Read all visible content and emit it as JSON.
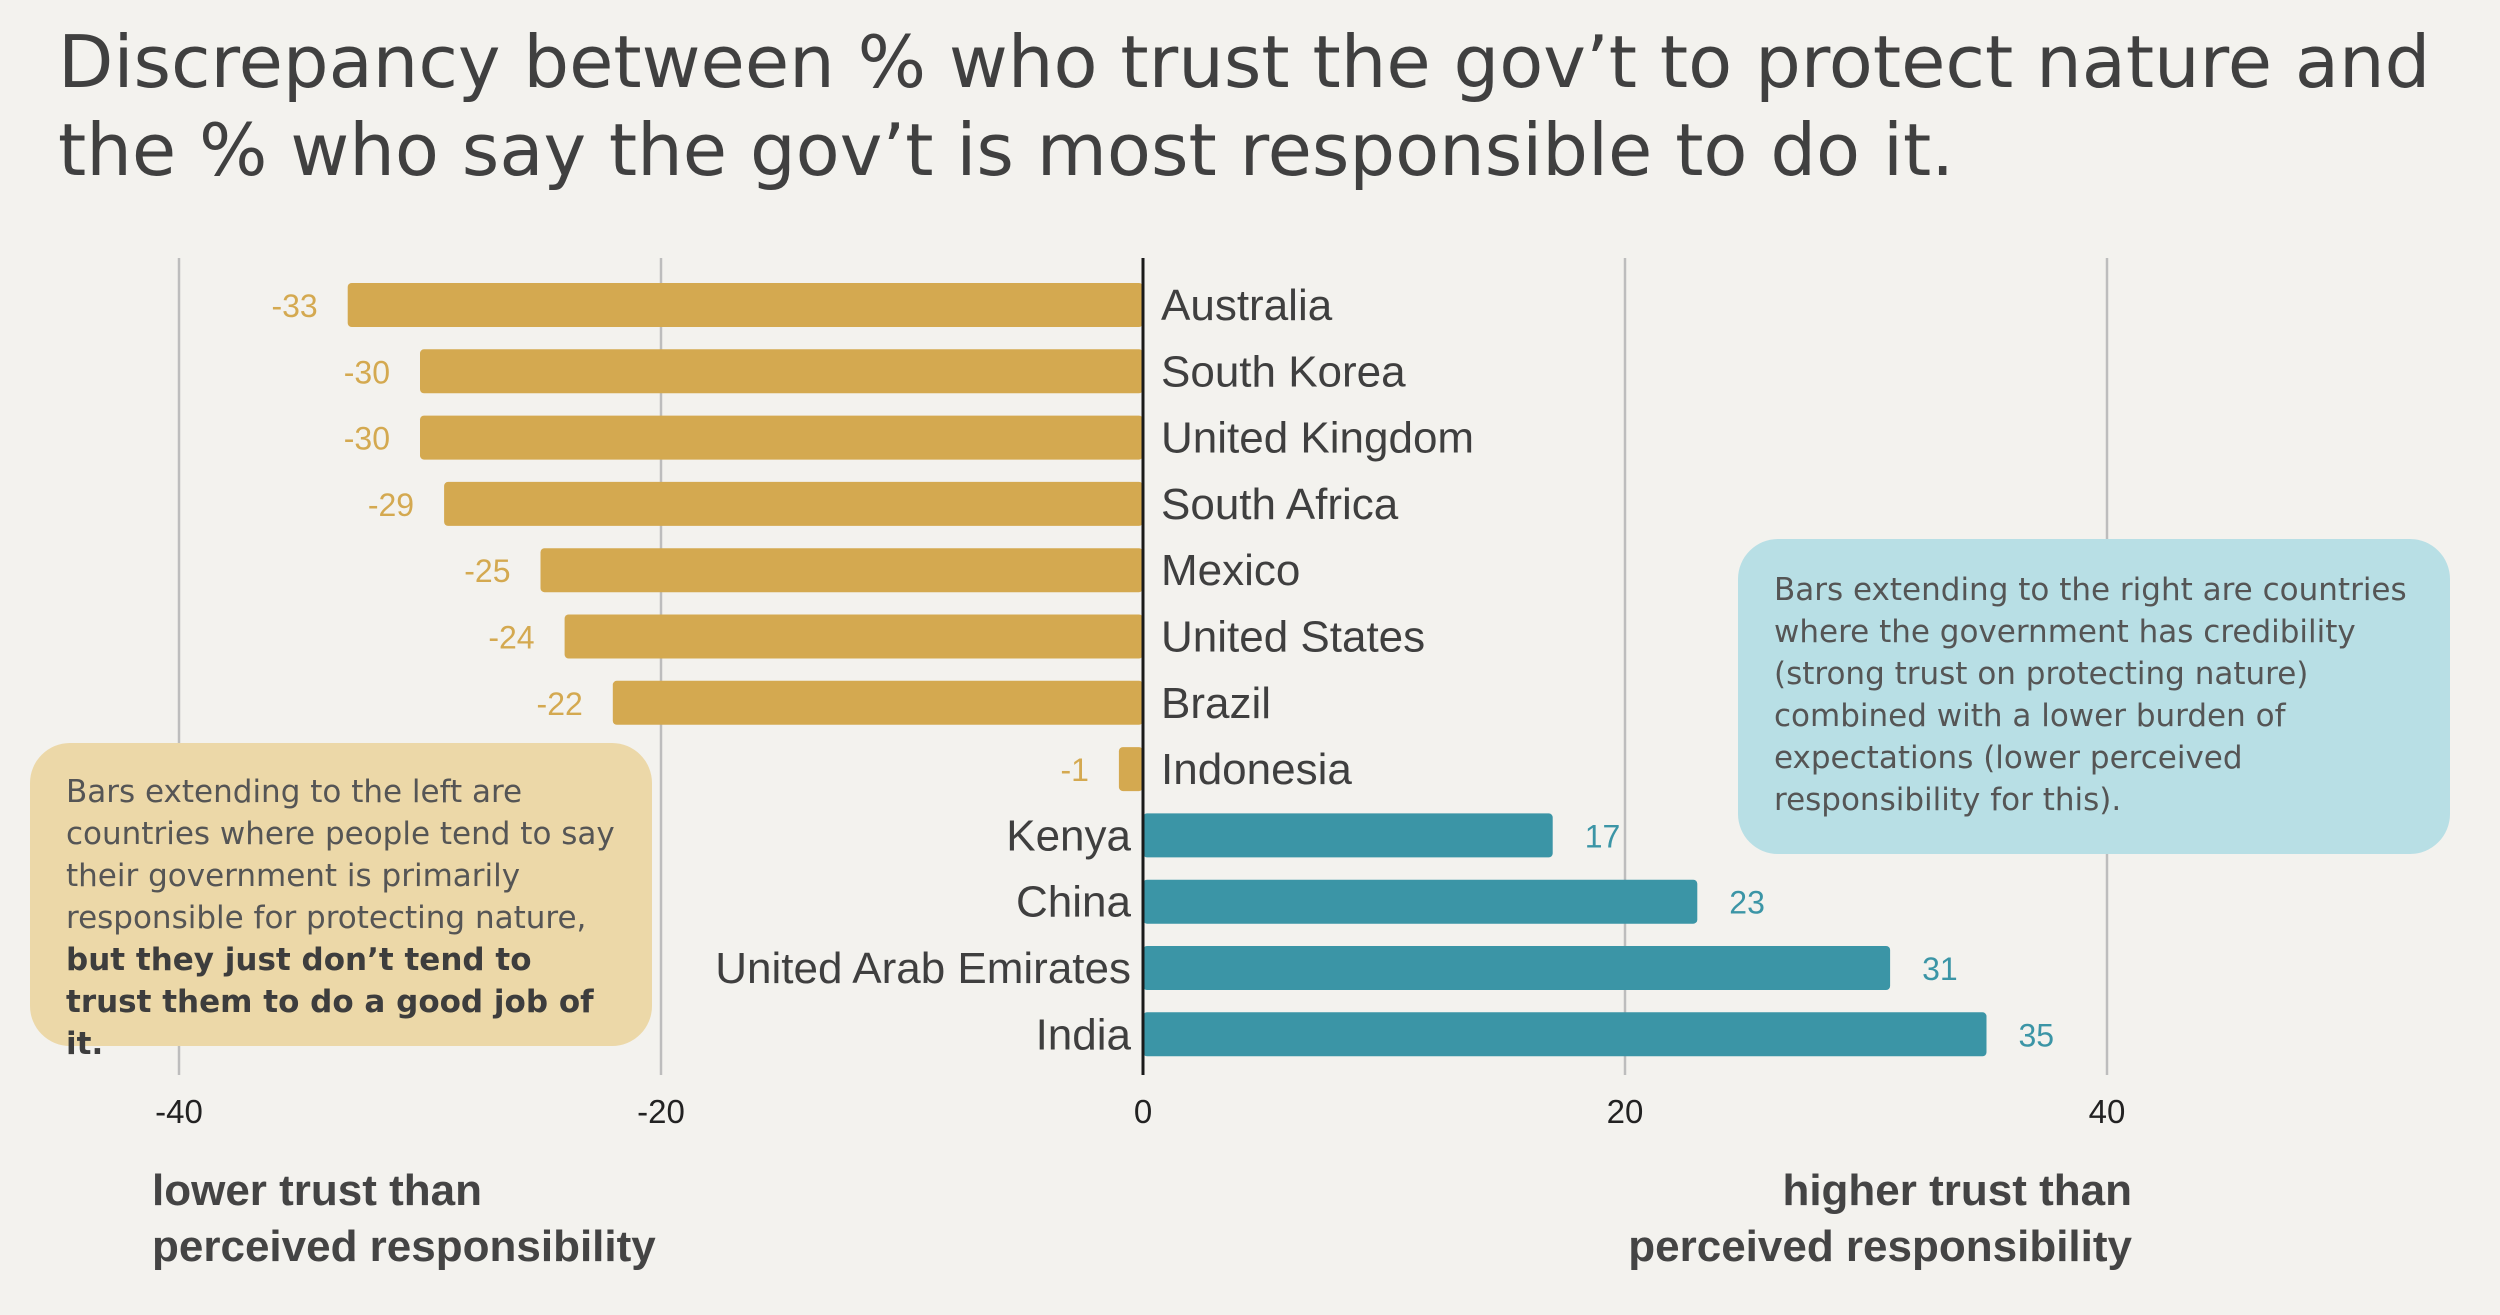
{
  "title": "Discrepancy between % who trust the gov’t to protect nature and the % who say the gov’t is most responsible to do it.",
  "colors": {
    "negative": "#d4a950",
    "positive": "#3b95a6",
    "background": "#f3f2ee"
  },
  "callouts": {
    "left": {
      "text": "Bars extending to the left are countries where people tend to say their government is primarily responsible for protecting nature,",
      "bold": "but they just don’t tend to trust them to do a good job of it."
    },
    "right": {
      "text": "Bars extending to the right are countries where the government has credibility (strong trust on protecting nature) combined with a lower burden of expectations (lower perceived responsibility for this)."
    }
  },
  "axis_notes": {
    "left": [
      "lower trust than",
      "perceived responsibility"
    ],
    "right": [
      "higher trust than",
      "perceived responsibility"
    ]
  },
  "chart_data": {
    "type": "bar",
    "orientation": "horizontal",
    "categories": [
      "Australia",
      "South Korea",
      "United Kingdom",
      "South Africa",
      "Mexico",
      "United States",
      "Brazil",
      "Indonesia",
      "Kenya",
      "China",
      "United Arab Emirates",
      "India"
    ],
    "values": [
      -33,
      -30,
      -30,
      -29,
      -25,
      -24,
      -22,
      -1,
      17,
      23,
      31,
      35
    ],
    "xlim": [
      -40,
      40
    ],
    "xticks": [
      -40,
      -20,
      0,
      20,
      40
    ],
    "grid": true
  }
}
